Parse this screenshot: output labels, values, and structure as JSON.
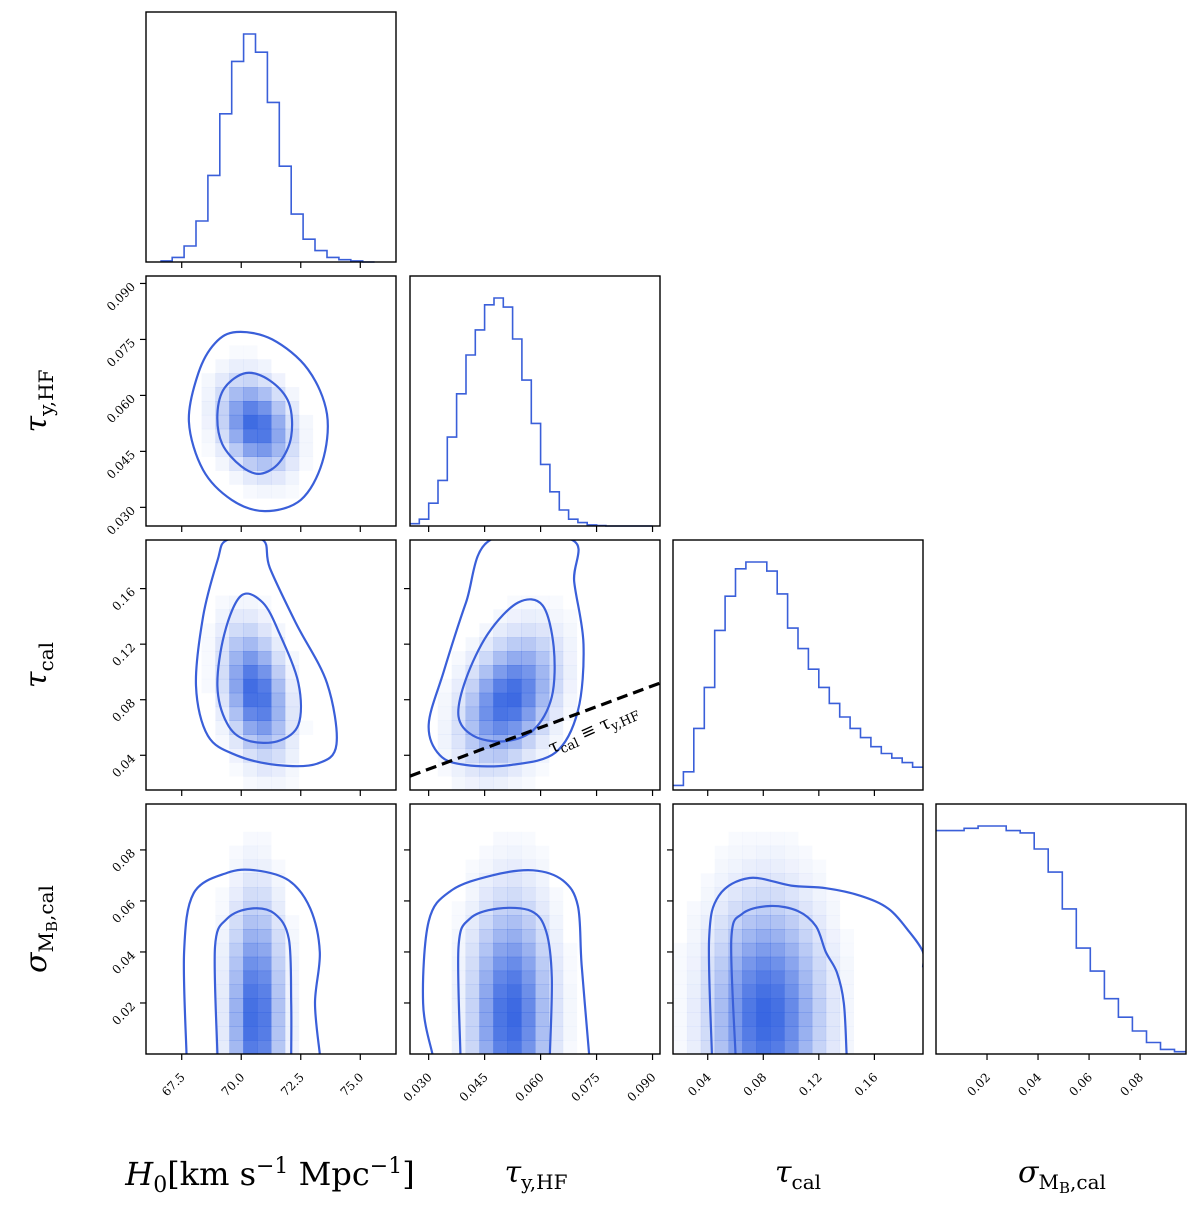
{
  "chart_data": {
    "type": "corner",
    "colors": {
      "line": "#3a5fd9",
      "density": "#2f5fe0",
      "reference_line": "#000000"
    },
    "parameters": [
      {
        "key": "H0",
        "label_main": "H",
        "label_sub": "0",
        "label_rest": "[km s",
        "label_sup1": "−1",
        "label_mid": " Mpc",
        "label_sup2": "−1",
        "label_end": "]",
        "range": [
          66.0,
          76.5
        ],
        "ticks": [
          67.5,
          70.0,
          72.5,
          75.0
        ],
        "tick_labels": [
          "67.5",
          "70.0",
          "72.5",
          "75.0"
        ]
      },
      {
        "key": "tau_y_HF",
        "label_main": "τ",
        "label_sub": "y,HF",
        "range": [
          0.025,
          0.092
        ],
        "ticks": [
          0.03,
          0.045,
          0.06,
          0.075,
          0.09
        ],
        "tick_labels": [
          "0.030",
          "0.045",
          "0.060",
          "0.075",
          "0.090"
        ]
      },
      {
        "key": "tau_cal",
        "label_main": "τ",
        "label_sub": "cal",
        "range": [
          0.015,
          0.195
        ],
        "ticks": [
          0.04,
          0.08,
          0.12,
          0.16
        ],
        "tick_labels": [
          "0.04",
          "0.08",
          "0.12",
          "0.16"
        ]
      },
      {
        "key": "sigma_MB_cal",
        "label_main": "σ",
        "label_sub": "M",
        "label_subsub": "B",
        "label_subrest": ",cal",
        "range": [
          0.0,
          0.098
        ],
        "ticks": [
          0.02,
          0.04,
          0.06,
          0.08
        ],
        "tick_labels": [
          "0.02",
          "0.04",
          "0.06",
          "0.08"
        ]
      }
    ],
    "marginals": {
      "H0": {
        "edges": [
          66.6,
          67.1,
          67.6,
          68.1,
          68.6,
          69.1,
          69.6,
          70.1,
          70.6,
          71.1,
          71.6,
          72.1,
          72.6,
          73.1,
          73.6,
          74.1,
          74.6,
          75.1,
          75.6
        ],
        "counts": [
          0.5,
          2,
          7,
          18,
          38,
          65,
          88,
          100,
          92,
          70,
          42,
          21,
          10,
          5,
          2,
          1,
          0.5,
          0
        ]
      },
      "tau_y_HF": {
        "edges": [
          0.025,
          0.0275,
          0.03,
          0.0325,
          0.035,
          0.0375,
          0.04,
          0.0425,
          0.045,
          0.0475,
          0.05,
          0.0525,
          0.055,
          0.0575,
          0.06,
          0.0625,
          0.065,
          0.0675,
          0.07,
          0.0725,
          0.075,
          0.0775,
          0.08,
          0.0825,
          0.085,
          0.0875,
          0.09
        ],
        "counts": [
          1,
          3,
          10,
          20,
          39,
          58,
          75,
          86,
          97,
          100,
          96,
          82,
          64,
          45,
          27,
          15,
          7,
          3,
          1.5,
          0.5,
          0.2,
          0,
          0,
          0,
          0,
          0
        ]
      },
      "tau_cal": {
        "edges": [
          0.015,
          0.0225,
          0.03,
          0.0375,
          0.045,
          0.0525,
          0.06,
          0.0675,
          0.075,
          0.0825,
          0.09,
          0.0975,
          0.105,
          0.1125,
          0.12,
          0.1275,
          0.135,
          0.1425,
          0.15,
          0.1575,
          0.165,
          0.1725,
          0.18,
          0.1875,
          0.195
        ],
        "counts": [
          2,
          8,
          27,
          45,
          70,
          85,
          97,
          100,
          100,
          96,
          86,
          71,
          62,
          53,
          45,
          38,
          32,
          27,
          23,
          19,
          16,
          14,
          12,
          10
        ]
      },
      "sigma_MB_cal": {
        "edges": [
          0.0,
          0.0055,
          0.011,
          0.0165,
          0.022,
          0.0275,
          0.033,
          0.0385,
          0.044,
          0.0495,
          0.055,
          0.0605,
          0.066,
          0.0715,
          0.077,
          0.0825,
          0.088,
          0.0935,
          0.098
        ],
        "counts": [
          97,
          97,
          98,
          99,
          99,
          97,
          96,
          89,
          79,
          63,
          46,
          36,
          24,
          16,
          10,
          5,
          2,
          1
        ]
      }
    },
    "pairs": [
      {
        "x": "H0",
        "y": "tau_y_HF",
        "center": [
          70.6,
          0.052
        ],
        "sigma": [
          0.9,
          0.0075
        ],
        "rho": -0.25,
        "contour_inner": [
          [
            70.2,
            0.066
          ],
          [
            71.2,
            0.064
          ],
          [
            72.0,
            0.058
          ],
          [
            72.1,
            0.049
          ],
          [
            71.6,
            0.042
          ],
          [
            70.8,
            0.039
          ],
          [
            70.0,
            0.041
          ],
          [
            69.2,
            0.047
          ],
          [
            69.0,
            0.055
          ],
          [
            69.3,
            0.062
          ]
        ],
        "contour_outer": [
          [
            69.8,
            0.077
          ],
          [
            71.3,
            0.075
          ],
          [
            72.8,
            0.067
          ],
          [
            73.6,
            0.055
          ],
          [
            73.4,
            0.042
          ],
          [
            72.5,
            0.032
          ],
          [
            71.0,
            0.029
          ],
          [
            69.6,
            0.032
          ],
          [
            68.4,
            0.04
          ],
          [
            67.8,
            0.053
          ],
          [
            68.2,
            0.066
          ],
          [
            68.9,
            0.074
          ]
        ]
      },
      {
        "x": "H0",
        "y": "tau_cal",
        "center": [
          70.6,
          0.085
        ],
        "sigma": [
          0.8,
          0.028
        ],
        "rho": -0.3,
        "contour_inner": [
          [
            70.0,
            0.155
          ],
          [
            70.9,
            0.15
          ],
          [
            71.6,
            0.128
          ],
          [
            72.4,
            0.092
          ],
          [
            72.4,
            0.062
          ],
          [
            71.5,
            0.05
          ],
          [
            70.2,
            0.051
          ],
          [
            69.4,
            0.063
          ],
          [
            69.0,
            0.09
          ],
          [
            69.3,
            0.128
          ]
        ],
        "contour_outer": [
          [
            69.4,
            0.195
          ],
          [
            70.9,
            0.195
          ],
          [
            71.2,
            0.175
          ],
          [
            72.3,
            0.135
          ],
          [
            73.6,
            0.092
          ],
          [
            74.0,
            0.048
          ],
          [
            73.2,
            0.034
          ],
          [
            71.5,
            0.033
          ],
          [
            69.8,
            0.04
          ],
          [
            68.6,
            0.054
          ],
          [
            68.1,
            0.09
          ],
          [
            68.4,
            0.14
          ],
          [
            69.0,
            0.18
          ]
        ]
      },
      {
        "x": "tau_y_HF",
        "y": "tau_cal",
        "center": [
          0.0515,
          0.08
        ],
        "sigma": [
          0.0075,
          0.028
        ],
        "rho": 0.35,
        "contour_inner": [
          [
            0.054,
            0.15
          ],
          [
            0.0605,
            0.148
          ],
          [
            0.0635,
            0.118
          ],
          [
            0.063,
            0.082
          ],
          [
            0.058,
            0.058
          ],
          [
            0.05,
            0.05
          ],
          [
            0.042,
            0.054
          ],
          [
            0.038,
            0.068
          ],
          [
            0.04,
            0.095
          ],
          [
            0.046,
            0.128
          ]
        ],
        "contour_outer": [
          [
            0.0465,
            0.195
          ],
          [
            0.0685,
            0.195
          ],
          [
            0.069,
            0.165
          ],
          [
            0.0715,
            0.12
          ],
          [
            0.07,
            0.072
          ],
          [
            0.064,
            0.042
          ],
          [
            0.052,
            0.033
          ],
          [
            0.04,
            0.033
          ],
          [
            0.033,
            0.04
          ],
          [
            0.03,
            0.062
          ],
          [
            0.034,
            0.1
          ],
          [
            0.04,
            0.15
          ]
        ]
      },
      {
        "x": "H0",
        "y": "sigma_MB_cal",
        "center": [
          70.6,
          0.015
        ],
        "sigma": [
          0.7,
          0.028
        ],
        "rho": 0.0,
        "contour_inner": [
          [
            69.0,
            0.0
          ],
          [
            68.9,
            0.042
          ],
          [
            69.4,
            0.053
          ],
          [
            70.4,
            0.057
          ],
          [
            71.4,
            0.055
          ],
          [
            72.0,
            0.045
          ],
          [
            72.1,
            0.02
          ],
          [
            72.1,
            0.0
          ]
        ],
        "contour_outer": [
          [
            67.7,
            0.0
          ],
          [
            67.6,
            0.04
          ],
          [
            68.0,
            0.063
          ],
          [
            69.4,
            0.071
          ],
          [
            70.6,
            0.072
          ],
          [
            72.0,
            0.068
          ],
          [
            72.9,
            0.057
          ],
          [
            73.3,
            0.04
          ],
          [
            73.1,
            0.02
          ],
          [
            73.3,
            0.0
          ]
        ]
      },
      {
        "x": "tau_y_HF",
        "y": "sigma_MB_cal",
        "center": [
          0.052,
          0.015
        ],
        "sigma": [
          0.0065,
          0.028
        ],
        "rho": 0.0,
        "contour_inner": [
          [
            0.0385,
            0.0
          ],
          [
            0.038,
            0.042
          ],
          [
            0.041,
            0.053
          ],
          [
            0.0485,
            0.057
          ],
          [
            0.0575,
            0.056
          ],
          [
            0.0615,
            0.048
          ],
          [
            0.063,
            0.03
          ],
          [
            0.0625,
            0.0
          ]
        ],
        "contour_outer": [
          [
            0.031,
            0.0
          ],
          [
            0.0285,
            0.02
          ],
          [
            0.03,
            0.052
          ],
          [
            0.036,
            0.064
          ],
          [
            0.047,
            0.07
          ],
          [
            0.058,
            0.072
          ],
          [
            0.066,
            0.068
          ],
          [
            0.07,
            0.058
          ],
          [
            0.071,
            0.035
          ],
          [
            0.073,
            0.0
          ]
        ]
      },
      {
        "x": "tau_cal",
        "y": "sigma_MB_cal",
        "center": [
          0.082,
          0.015
        ],
        "sigma": [
          0.025,
          0.028
        ],
        "rho": 0.0,
        "contour_inner": [
          [
            0.06,
            0.0
          ],
          [
            0.057,
            0.045
          ],
          [
            0.065,
            0.055
          ],
          [
            0.085,
            0.058
          ],
          [
            0.105,
            0.056
          ],
          [
            0.118,
            0.05
          ],
          [
            0.125,
            0.04
          ],
          [
            0.133,
            0.032
          ],
          [
            0.138,
            0.02
          ],
          [
            0.14,
            0.0
          ]
        ],
        "contour_outer": [
          [
            0.043,
            0.0
          ],
          [
            0.041,
            0.045
          ],
          [
            0.048,
            0.062
          ],
          [
            0.07,
            0.069
          ],
          [
            0.1,
            0.066
          ],
          [
            0.125,
            0.065
          ],
          [
            0.15,
            0.062
          ],
          [
            0.17,
            0.057
          ],
          [
            0.185,
            0.048
          ],
          [
            0.195,
            0.04
          ],
          [
            0.195,
            0.034
          ]
        ]
      }
    ],
    "reference_line": {
      "x_key": "tau_y_HF",
      "y_key": "tau_cal",
      "relation": "τcal = τy,HF",
      "label_main": "τ",
      "label_sub1": "cal",
      "label_op": " ≡ ",
      "label_main2": "τ",
      "label_sub2": "y,HF"
    }
  }
}
